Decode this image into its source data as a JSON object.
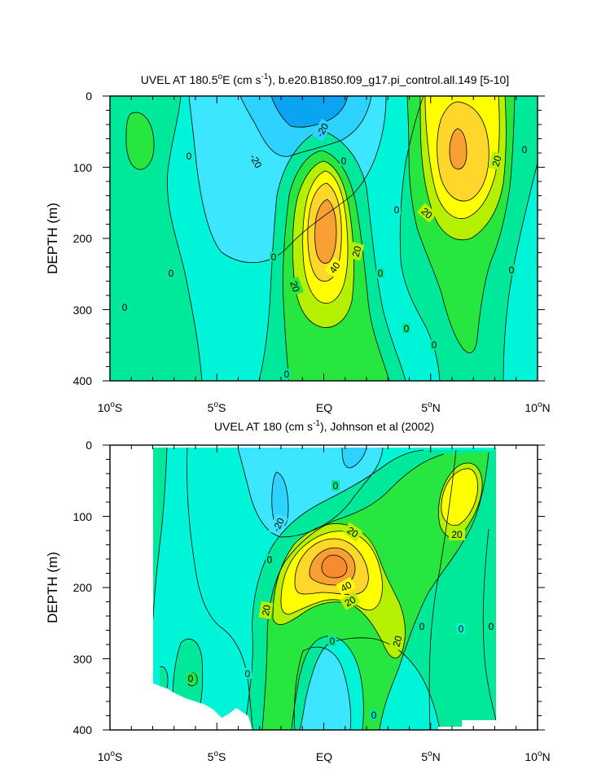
{
  "chart_data": [
    {
      "type": "contour",
      "title": "UVEL AT 180.5°E (cm s⁻¹), b.e20.B1850.f09_g17.pi_control.all.149 [5-10]",
      "ylabel": "DEPTH (m)",
      "xlim": [
        -10,
        10
      ],
      "ylim": [
        400,
        0
      ],
      "x_ticks": [
        "10°S",
        "5°S",
        "EQ",
        "5°N",
        "10°N"
      ],
      "y_ticks": [
        "0",
        "100",
        "200",
        "300",
        "400"
      ],
      "contour_interval": 10,
      "colors": {
        "neg30": "#0aa4f2",
        "neg20": "#2ed2ff",
        "neg10": "#3ce6ff",
        "zero_neg": "#00f5d8",
        "pos0": "#00e89a",
        "pos10": "#27e63f",
        "pos20": "#b4f000",
        "pos30": "#ffff00",
        "pos40": "#ffd62a",
        "pos50": "#f9a035"
      },
      "contour_labels": [
        "-20",
        "-20",
        "20",
        "20",
        "40",
        "20",
        "0",
        "0",
        "0",
        "0",
        "0",
        "0",
        "0",
        "0",
        "0",
        "0",
        "0",
        "0",
        "20",
        "20"
      ]
    },
    {
      "type": "contour",
      "title": "UVEL AT 180 (cm s⁻¹), Johnson et al (2002)",
      "ylabel": "DEPTH (m)",
      "xlim": [
        -10,
        10
      ],
      "ylim": [
        400,
        0
      ],
      "x_ticks": [
        "10°S",
        "5°S",
        "EQ",
        "5°N",
        "10°N"
      ],
      "y_ticks": [
        "0",
        "100",
        "200",
        "300",
        "400"
      ],
      "data_xlim": [
        -8,
        8
      ],
      "contour_interval": 10,
      "contour_labels": [
        "-20",
        "20",
        "20",
        "40",
        "20",
        "20",
        "20",
        "20",
        "0",
        "0",
        "0",
        "0",
        "0",
        "0",
        "0",
        "0",
        "0"
      ]
    }
  ]
}
